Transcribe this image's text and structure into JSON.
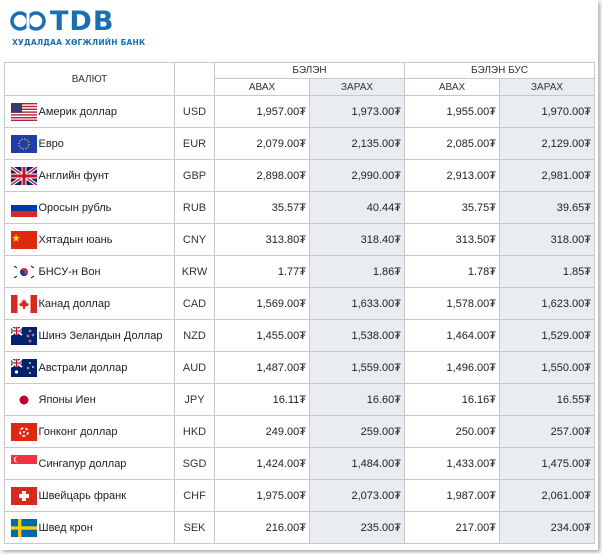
{
  "brand": {
    "name": "TDB",
    "subtitle": "ХУДАЛДАА ХӨГЖЛИЙН БАНК"
  },
  "header": {
    "currency": "ВАЛЮТ",
    "cash": "БЭЛЭН",
    "noncash": "БЭЛЭН БУС",
    "buy": "АВАХ",
    "sell": "ЗАРАХ"
  },
  "rows": [
    {
      "flag": "us",
      "name": "Америк доллар",
      "code": "USD",
      "cash_buy": "1,957.00₮",
      "cash_sell": "1,973.00₮",
      "noncash_buy": "1,955.00₮",
      "noncash_sell": "1,970.00₮"
    },
    {
      "flag": "eu",
      "name": "Евро",
      "code": "EUR",
      "cash_buy": "2,079.00₮",
      "cash_sell": "2,135.00₮",
      "noncash_buy": "2,085.00₮",
      "noncash_sell": "2,129.00₮"
    },
    {
      "flag": "gb",
      "name": "Английн фунт",
      "code": "GBP",
      "cash_buy": "2,898.00₮",
      "cash_sell": "2,990.00₮",
      "noncash_buy": "2,913.00₮",
      "noncash_sell": "2,981.00₮"
    },
    {
      "flag": "ru",
      "name": "Оросын рубль",
      "code": "RUB",
      "cash_buy": "35.57₮",
      "cash_sell": "40.44₮",
      "noncash_buy": "35.75₮",
      "noncash_sell": "39.65₮"
    },
    {
      "flag": "cn",
      "name": "Хятадын юань",
      "code": "CNY",
      "cash_buy": "313.80₮",
      "cash_sell": "318.40₮",
      "noncash_buy": "313.50₮",
      "noncash_sell": "318.00₮"
    },
    {
      "flag": "kr",
      "name": "БНСУ-н Вон",
      "code": "KRW",
      "cash_buy": "1.77₮",
      "cash_sell": "1.86₮",
      "noncash_buy": "1.78₮",
      "noncash_sell": "1.85₮"
    },
    {
      "flag": "ca",
      "name": "Канад доллар",
      "code": "CAD",
      "cash_buy": "1,569.00₮",
      "cash_sell": "1,633.00₮",
      "noncash_buy": "1,578.00₮",
      "noncash_sell": "1,623.00₮"
    },
    {
      "flag": "nz",
      "name": "Шинэ Зеландын Доллар",
      "code": "NZD",
      "cash_buy": "1,455.00₮",
      "cash_sell": "1,538.00₮",
      "noncash_buy": "1,464.00₮",
      "noncash_sell": "1,529.00₮"
    },
    {
      "flag": "au",
      "name": "Австрали доллар",
      "code": "AUD",
      "cash_buy": "1,487.00₮",
      "cash_sell": "1,559.00₮",
      "noncash_buy": "1,496.00₮",
      "noncash_sell": "1,550.00₮"
    },
    {
      "flag": "jp",
      "name": "Японы Иен",
      "code": "JPY",
      "cash_buy": "16.11₮",
      "cash_sell": "16.60₮",
      "noncash_buy": "16.16₮",
      "noncash_sell": "16.55₮"
    },
    {
      "flag": "hk",
      "name": "Гонконг доллар",
      "code": "HKD",
      "cash_buy": "249.00₮",
      "cash_sell": "259.00₮",
      "noncash_buy": "250.00₮",
      "noncash_sell": "257.00₮"
    },
    {
      "flag": "sg",
      "name": "Сингапур доллар",
      "code": "SGD",
      "cash_buy": "1,424.00₮",
      "cash_sell": "1,484.00₮",
      "noncash_buy": "1,433.00₮",
      "noncash_sell": "1,475.00₮"
    },
    {
      "flag": "ch",
      "name": "Швейцарь франк",
      "code": "CHF",
      "cash_buy": "1,975.00₮",
      "cash_sell": "2,073.00₮",
      "noncash_buy": "1,987.00₮",
      "noncash_sell": "2,061.00₮"
    },
    {
      "flag": "se",
      "name": "Швед крон",
      "code": "SEK",
      "cash_buy": "216.00₮",
      "cash_sell": "235.00₮",
      "noncash_buy": "217.00₮",
      "noncash_sell": "234.00₮"
    }
  ]
}
